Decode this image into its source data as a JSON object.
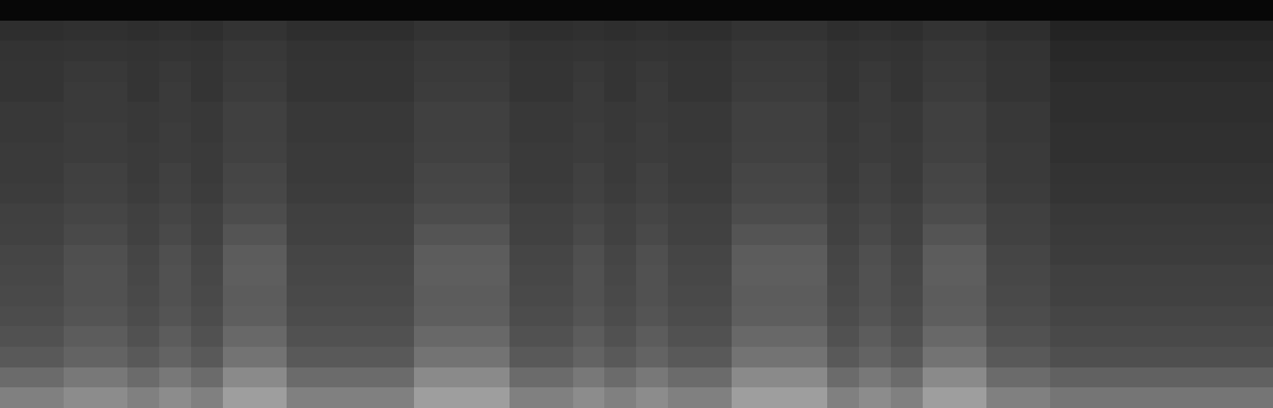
{
  "chart_data": {
    "type": "heatmap",
    "color": "gray",
    "tick_labels": false,
    "clim": [
      0,
      1
    ],
    "cells": [
      [
        0.03,
        0.03,
        0.03,
        0.03,
        0.03,
        0.03,
        0.03,
        0.03,
        0.03,
        0.03,
        0.03,
        0.03,
        0.03,
        0.03,
        0.03,
        0.03,
        0.03,
        0.03,
        0.03,
        0.03,
        0.03,
        0.03,
        0.03,
        0.03,
        0.03,
        0.03,
        0.03,
        0.03,
        0.03,
        0.03,
        0.03,
        0.03,
        0.03,
        0.03,
        0.03,
        0.03,
        0.03,
        0.03,
        0.03,
        0.03
      ],
      [
        0.18,
        0.18,
        0.19,
        0.19,
        0.18,
        0.19,
        0.18,
        0.2,
        0.2,
        0.18,
        0.18,
        0.18,
        0.18,
        0.2,
        0.2,
        0.2,
        0.18,
        0.18,
        0.19,
        0.18,
        0.19,
        0.18,
        0.18,
        0.2,
        0.2,
        0.2,
        0.18,
        0.19,
        0.18,
        0.2,
        0.2,
        0.18,
        0.18,
        0.14,
        0.14,
        0.14,
        0.14,
        0.14,
        0.14,
        0.14
      ],
      [
        0.2,
        0.2,
        0.21,
        0.21,
        0.2,
        0.21,
        0.2,
        0.22,
        0.22,
        0.2,
        0.2,
        0.2,
        0.2,
        0.22,
        0.22,
        0.22,
        0.2,
        0.2,
        0.21,
        0.2,
        0.21,
        0.2,
        0.2,
        0.22,
        0.22,
        0.22,
        0.2,
        0.21,
        0.2,
        0.22,
        0.22,
        0.2,
        0.2,
        0.16,
        0.16,
        0.16,
        0.16,
        0.16,
        0.16,
        0.16
      ],
      [
        0.21,
        0.21,
        0.22,
        0.22,
        0.21,
        0.22,
        0.21,
        0.23,
        0.23,
        0.21,
        0.21,
        0.21,
        0.21,
        0.23,
        0.23,
        0.23,
        0.21,
        0.21,
        0.22,
        0.21,
        0.22,
        0.21,
        0.21,
        0.23,
        0.23,
        0.23,
        0.21,
        0.22,
        0.21,
        0.23,
        0.23,
        0.21,
        0.21,
        0.17,
        0.17,
        0.17,
        0.17,
        0.17,
        0.17,
        0.17
      ],
      [
        0.21,
        0.21,
        0.23,
        0.23,
        0.21,
        0.23,
        0.21,
        0.24,
        0.24,
        0.21,
        0.21,
        0.21,
        0.21,
        0.24,
        0.24,
        0.24,
        0.21,
        0.21,
        0.23,
        0.21,
        0.23,
        0.21,
        0.21,
        0.24,
        0.24,
        0.24,
        0.21,
        0.23,
        0.21,
        0.24,
        0.24,
        0.21,
        0.21,
        0.18,
        0.18,
        0.18,
        0.18,
        0.18,
        0.18,
        0.18
      ],
      [
        0.22,
        0.22,
        0.23,
        0.23,
        0.22,
        0.23,
        0.22,
        0.25,
        0.25,
        0.22,
        0.22,
        0.22,
        0.22,
        0.25,
        0.25,
        0.25,
        0.22,
        0.22,
        0.23,
        0.22,
        0.23,
        0.22,
        0.22,
        0.25,
        0.25,
        0.25,
        0.22,
        0.23,
        0.22,
        0.25,
        0.25,
        0.22,
        0.22,
        0.18,
        0.18,
        0.18,
        0.18,
        0.18,
        0.18,
        0.18
      ],
      [
        0.22,
        0.22,
        0.24,
        0.24,
        0.22,
        0.24,
        0.22,
        0.25,
        0.25,
        0.22,
        0.22,
        0.22,
        0.22,
        0.25,
        0.25,
        0.25,
        0.22,
        0.22,
        0.24,
        0.22,
        0.24,
        0.22,
        0.22,
        0.25,
        0.25,
        0.25,
        0.22,
        0.24,
        0.22,
        0.25,
        0.25,
        0.22,
        0.22,
        0.19,
        0.19,
        0.19,
        0.19,
        0.19,
        0.19,
        0.19
      ],
      [
        0.23,
        0.23,
        0.24,
        0.24,
        0.23,
        0.24,
        0.23,
        0.26,
        0.26,
        0.23,
        0.23,
        0.23,
        0.23,
        0.26,
        0.26,
        0.26,
        0.23,
        0.23,
        0.24,
        0.23,
        0.24,
        0.23,
        0.23,
        0.26,
        0.26,
        0.26,
        0.23,
        0.24,
        0.23,
        0.26,
        0.26,
        0.23,
        0.23,
        0.19,
        0.19,
        0.19,
        0.19,
        0.19,
        0.19,
        0.19
      ],
      [
        0.23,
        0.23,
        0.25,
        0.25,
        0.23,
        0.25,
        0.23,
        0.27,
        0.27,
        0.23,
        0.23,
        0.23,
        0.23,
        0.27,
        0.27,
        0.27,
        0.23,
        0.23,
        0.25,
        0.23,
        0.25,
        0.23,
        0.23,
        0.27,
        0.27,
        0.27,
        0.23,
        0.25,
        0.23,
        0.27,
        0.27,
        0.23,
        0.23,
        0.2,
        0.2,
        0.2,
        0.2,
        0.2,
        0.2,
        0.2
      ],
      [
        0.24,
        0.24,
        0.26,
        0.26,
        0.24,
        0.26,
        0.24,
        0.28,
        0.28,
        0.24,
        0.24,
        0.24,
        0.24,
        0.28,
        0.28,
        0.28,
        0.24,
        0.24,
        0.26,
        0.24,
        0.26,
        0.24,
        0.24,
        0.28,
        0.28,
        0.28,
        0.24,
        0.26,
        0.24,
        0.28,
        0.28,
        0.24,
        0.24,
        0.21,
        0.21,
        0.21,
        0.21,
        0.21,
        0.21,
        0.21
      ],
      [
        0.25,
        0.25,
        0.27,
        0.27,
        0.25,
        0.27,
        0.25,
        0.3,
        0.3,
        0.25,
        0.25,
        0.25,
        0.25,
        0.3,
        0.3,
        0.3,
        0.25,
        0.25,
        0.27,
        0.25,
        0.27,
        0.25,
        0.25,
        0.3,
        0.3,
        0.3,
        0.25,
        0.27,
        0.25,
        0.3,
        0.3,
        0.25,
        0.25,
        0.22,
        0.22,
        0.22,
        0.22,
        0.22,
        0.22,
        0.22
      ],
      [
        0.26,
        0.26,
        0.29,
        0.29,
        0.26,
        0.29,
        0.26,
        0.33,
        0.33,
        0.26,
        0.26,
        0.26,
        0.26,
        0.33,
        0.33,
        0.33,
        0.26,
        0.26,
        0.29,
        0.26,
        0.29,
        0.26,
        0.26,
        0.33,
        0.33,
        0.33,
        0.26,
        0.29,
        0.26,
        0.33,
        0.33,
        0.26,
        0.26,
        0.23,
        0.23,
        0.23,
        0.23,
        0.23,
        0.23,
        0.23
      ],
      [
        0.27,
        0.27,
        0.31,
        0.31,
        0.27,
        0.31,
        0.27,
        0.36,
        0.36,
        0.27,
        0.27,
        0.27,
        0.27,
        0.36,
        0.36,
        0.36,
        0.27,
        0.27,
        0.31,
        0.27,
        0.31,
        0.27,
        0.27,
        0.36,
        0.36,
        0.36,
        0.27,
        0.31,
        0.27,
        0.36,
        0.36,
        0.27,
        0.27,
        0.24,
        0.24,
        0.24,
        0.24,
        0.24,
        0.24,
        0.24
      ],
      [
        0.28,
        0.28,
        0.32,
        0.32,
        0.28,
        0.32,
        0.28,
        0.37,
        0.37,
        0.28,
        0.28,
        0.28,
        0.28,
        0.37,
        0.37,
        0.37,
        0.28,
        0.28,
        0.32,
        0.28,
        0.32,
        0.28,
        0.28,
        0.37,
        0.37,
        0.37,
        0.28,
        0.32,
        0.28,
        0.37,
        0.37,
        0.28,
        0.28,
        0.25,
        0.25,
        0.25,
        0.25,
        0.25,
        0.25,
        0.25
      ],
      [
        0.29,
        0.29,
        0.32,
        0.32,
        0.29,
        0.32,
        0.29,
        0.36,
        0.36,
        0.29,
        0.29,
        0.29,
        0.29,
        0.36,
        0.36,
        0.36,
        0.29,
        0.29,
        0.32,
        0.29,
        0.32,
        0.29,
        0.29,
        0.36,
        0.36,
        0.36,
        0.29,
        0.32,
        0.29,
        0.36,
        0.36,
        0.29,
        0.29,
        0.26,
        0.26,
        0.26,
        0.26,
        0.26,
        0.26,
        0.26
      ],
      [
        0.3,
        0.3,
        0.33,
        0.33,
        0.3,
        0.33,
        0.3,
        0.37,
        0.37,
        0.3,
        0.3,
        0.3,
        0.3,
        0.37,
        0.37,
        0.37,
        0.3,
        0.3,
        0.33,
        0.3,
        0.33,
        0.3,
        0.3,
        0.37,
        0.37,
        0.37,
        0.3,
        0.33,
        0.3,
        0.37,
        0.37,
        0.3,
        0.3,
        0.27,
        0.27,
        0.27,
        0.27,
        0.27,
        0.27,
        0.27
      ],
      [
        0.32,
        0.32,
        0.36,
        0.36,
        0.32,
        0.36,
        0.32,
        0.41,
        0.41,
        0.32,
        0.32,
        0.32,
        0.32,
        0.41,
        0.41,
        0.41,
        0.32,
        0.32,
        0.36,
        0.32,
        0.36,
        0.32,
        0.32,
        0.41,
        0.41,
        0.41,
        0.32,
        0.36,
        0.32,
        0.41,
        0.41,
        0.32,
        0.32,
        0.29,
        0.29,
        0.29,
        0.29,
        0.29,
        0.29,
        0.29
      ],
      [
        0.35,
        0.35,
        0.39,
        0.39,
        0.35,
        0.39,
        0.35,
        0.45,
        0.45,
        0.35,
        0.35,
        0.35,
        0.35,
        0.45,
        0.45,
        0.45,
        0.35,
        0.35,
        0.39,
        0.35,
        0.39,
        0.35,
        0.35,
        0.45,
        0.45,
        0.45,
        0.35,
        0.39,
        0.35,
        0.45,
        0.45,
        0.35,
        0.35,
        0.31,
        0.31,
        0.31,
        0.31,
        0.31,
        0.31,
        0.31
      ],
      [
        0.42,
        0.42,
        0.47,
        0.47,
        0.42,
        0.47,
        0.42,
        0.54,
        0.54,
        0.42,
        0.42,
        0.42,
        0.42,
        0.54,
        0.54,
        0.54,
        0.42,
        0.42,
        0.47,
        0.42,
        0.47,
        0.42,
        0.42,
        0.54,
        0.54,
        0.54,
        0.42,
        0.47,
        0.42,
        0.54,
        0.54,
        0.42,
        0.42,
        0.38,
        0.38,
        0.38,
        0.38,
        0.38,
        0.38,
        0.38
      ],
      [
        0.5,
        0.5,
        0.55,
        0.55,
        0.5,
        0.55,
        0.5,
        0.62,
        0.62,
        0.5,
        0.5,
        0.5,
        0.5,
        0.62,
        0.62,
        0.62,
        0.5,
        0.5,
        0.55,
        0.5,
        0.55,
        0.5,
        0.5,
        0.62,
        0.62,
        0.62,
        0.5,
        0.55,
        0.5,
        0.62,
        0.62,
        0.5,
        0.5,
        0.46,
        0.46,
        0.46,
        0.46,
        0.46,
        0.46,
        0.46
      ]
    ]
  }
}
